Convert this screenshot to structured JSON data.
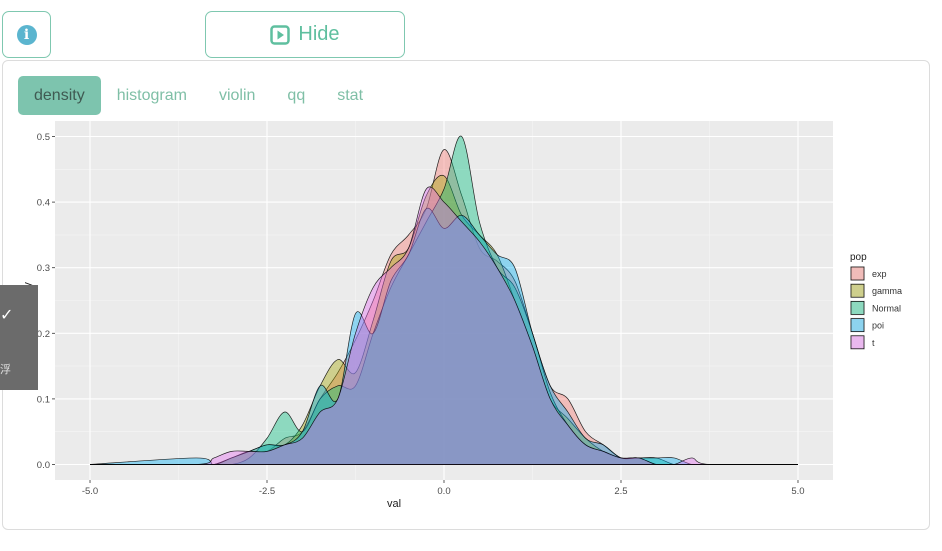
{
  "toolbar": {
    "info_icon": "info-icon",
    "hide_label": "Hide",
    "hide_icon": "play-square-icon"
  },
  "tabs": [
    {
      "label": "density",
      "active": true
    },
    {
      "label": "histogram",
      "active": false
    },
    {
      "label": "violin",
      "active": false
    },
    {
      "label": "qq",
      "active": false
    },
    {
      "label": "stat",
      "active": false
    }
  ],
  "side_panel": {
    "char": "浮"
  },
  "colors": {
    "accent": "#7dc4ae",
    "accent_text": "#5fbf9f",
    "panel_bg": "#ebebeb",
    "grid": "#ffffff"
  },
  "chart_data": {
    "type": "area",
    "subtype": "density",
    "xlabel": "val",
    "ylabel": "density",
    "xlim": [
      -5.0,
      5.0
    ],
    "ylim": [
      0,
      0.5
    ],
    "x_ticks": [
      "-5.0",
      "-2.5",
      "0.0",
      "2.5",
      "5.0"
    ],
    "y_ticks": [
      "0.0",
      "0.1",
      "0.2",
      "0.3",
      "0.4",
      "0.5"
    ],
    "grid": true,
    "legend": {
      "title": "pop",
      "position": "right"
    },
    "x": [
      -5.0,
      -3.5,
      -3.25,
      -3.0,
      -2.75,
      -2.5,
      -2.25,
      -2.0,
      -1.75,
      -1.5,
      -1.25,
      -1.0,
      -0.75,
      -0.5,
      -0.25,
      0.0,
      0.25,
      0.5,
      0.75,
      1.0,
      1.25,
      1.5,
      1.75,
      2.0,
      2.25,
      2.5,
      2.75,
      3.0,
      3.25,
      3.5,
      3.75,
      5.0
    ],
    "series": [
      {
        "name": "exp",
        "color": "#f8766d",
        "values": [
          0,
          0,
          0,
          0.01,
          0.02,
          0.02,
          0.04,
          0.05,
          0.1,
          0.14,
          0.19,
          0.25,
          0.32,
          0.35,
          0.39,
          0.48,
          0.41,
          0.33,
          0.31,
          0.28,
          0.2,
          0.12,
          0.1,
          0.05,
          0.03,
          0.01,
          0.01,
          0,
          0,
          0,
          0,
          0
        ]
      },
      {
        "name": "gamma",
        "color": "#a3a500",
        "values": [
          0,
          0,
          0,
          0.01,
          0.02,
          0.03,
          0.03,
          0.06,
          0.12,
          0.16,
          0.14,
          0.22,
          0.31,
          0.33,
          0.41,
          0.44,
          0.38,
          0.35,
          0.32,
          0.25,
          0.18,
          0.1,
          0.07,
          0.04,
          0.02,
          0.01,
          0.01,
          0,
          0,
          0,
          0,
          0
        ]
      },
      {
        "name": "Normal",
        "color": "#00bf7d",
        "values": [
          0,
          0,
          0,
          0,
          0.01,
          0.04,
          0.08,
          0.05,
          0.1,
          0.12,
          0.12,
          0.2,
          0.27,
          0.32,
          0.37,
          0.42,
          0.5,
          0.37,
          0.3,
          0.27,
          0.2,
          0.11,
          0.06,
          0.03,
          0.02,
          0.01,
          0.01,
          0.01,
          0,
          0,
          0,
          0
        ]
      },
      {
        "name": "poi",
        "color": "#00b0f6",
        "values": [
          0,
          0.01,
          0,
          0.01,
          0.02,
          0.03,
          0.03,
          0.05,
          0.12,
          0.1,
          0.23,
          0.2,
          0.28,
          0.32,
          0.39,
          0.36,
          0.38,
          0.35,
          0.32,
          0.3,
          0.2,
          0.12,
          0.08,
          0.04,
          0.03,
          0.01,
          0.01,
          0.01,
          0.01,
          0,
          0,
          0
        ]
      },
      {
        "name": "t",
        "color": "#e76bf3",
        "values": [
          0,
          0,
          0.01,
          0.02,
          0.02,
          0.02,
          0.03,
          0.04,
          0.08,
          0.1,
          0.2,
          0.27,
          0.3,
          0.33,
          0.42,
          0.4,
          0.37,
          0.34,
          0.3,
          0.25,
          0.18,
          0.1,
          0.06,
          0.03,
          0.02,
          0.01,
          0.01,
          0,
          0,
          0.01,
          0,
          0
        ]
      }
    ]
  }
}
